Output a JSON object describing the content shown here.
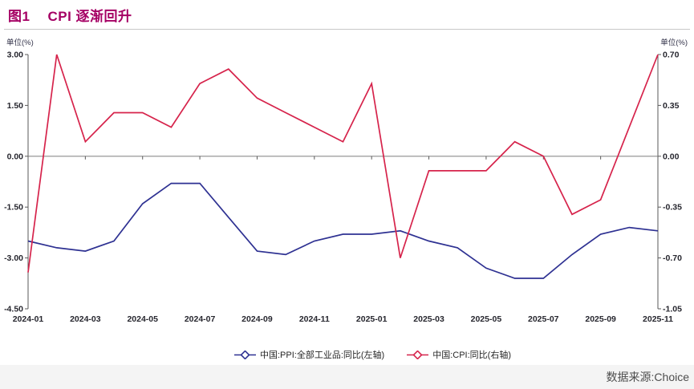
{
  "header": {
    "figure_label": "图1",
    "title": "CPI 逐渐回升"
  },
  "footer": {
    "source": "数据来源:Choice"
  },
  "colors": {
    "title": "#A50064",
    "ppi_line": "#2E3192",
    "cpi_line": "#D6234B",
    "zero_line": "#8C8C8C",
    "axis": "#595959",
    "tick_text": "#26262E",
    "footer_bg": "#F4F4F4",
    "footer_text": "#4D4D4D"
  },
  "chart_data": {
    "type": "line",
    "title": "CPI 逐渐回升",
    "x": [
      "2024-01",
      "2024-02",
      "2024-03",
      "2024-04",
      "2024-05",
      "2024-06",
      "2024-07",
      "2024-08",
      "2024-09",
      "2024-10",
      "2024-11",
      "2024-12",
      "2025-01",
      "2025-02",
      "2025-03",
      "2025-04",
      "2025-05",
      "2025-06",
      "2025-07",
      "2025-08",
      "2025-09",
      "2025-10",
      "2025-11"
    ],
    "x_label_every": 2,
    "series": [
      {
        "name": "中国:PPI:全部工业品:同比(左轴)",
        "axis": "left",
        "color": "#2E3192",
        "values": [
          -2.5,
          -2.7,
          -2.8,
          -2.5,
          -1.4,
          -0.8,
          -0.8,
          -1.8,
          -2.8,
          -2.9,
          -2.5,
          -2.3,
          -2.3,
          -2.2,
          -2.5,
          -2.7,
          -3.3,
          -3.6,
          -3.6,
          -2.9,
          -2.3,
          -2.1,
          -2.2
        ]
      },
      {
        "name": "中国:CPI:同比(右轴)",
        "axis": "right",
        "color": "#D6234B",
        "values": [
          -0.8,
          0.7,
          0.1,
          0.3,
          0.3,
          0.2,
          0.5,
          0.6,
          0.4,
          0.3,
          0.2,
          0.1,
          0.5,
          -0.7,
          -0.1,
          -0.1,
          -0.1,
          0.1,
          0.0,
          -0.4,
          -0.3,
          0.2,
          0.7
        ]
      }
    ],
    "left_axis": {
      "label": "单位(%)",
      "min": -4.5,
      "max": 3.0,
      "tick_values": [
        3.0,
        1.5,
        0.0,
        -1.5,
        -3.0,
        -4.5
      ],
      "tick_labels": [
        "3.00",
        "1.50",
        "0.00",
        "-1.50",
        "-3.00",
        "-4.50"
      ]
    },
    "right_axis": {
      "label": "单位(%)",
      "min": -1.05,
      "max": 0.7,
      "tick_values": [
        0.7,
        0.35,
        0.0,
        -0.35,
        -0.7,
        -1.05
      ],
      "tick_labels": [
        "0.70",
        "0.35",
        "0.00",
        "-0.35",
        "-0.70",
        "-1.05"
      ]
    },
    "grid": false,
    "legend_position": "bottom-center"
  }
}
